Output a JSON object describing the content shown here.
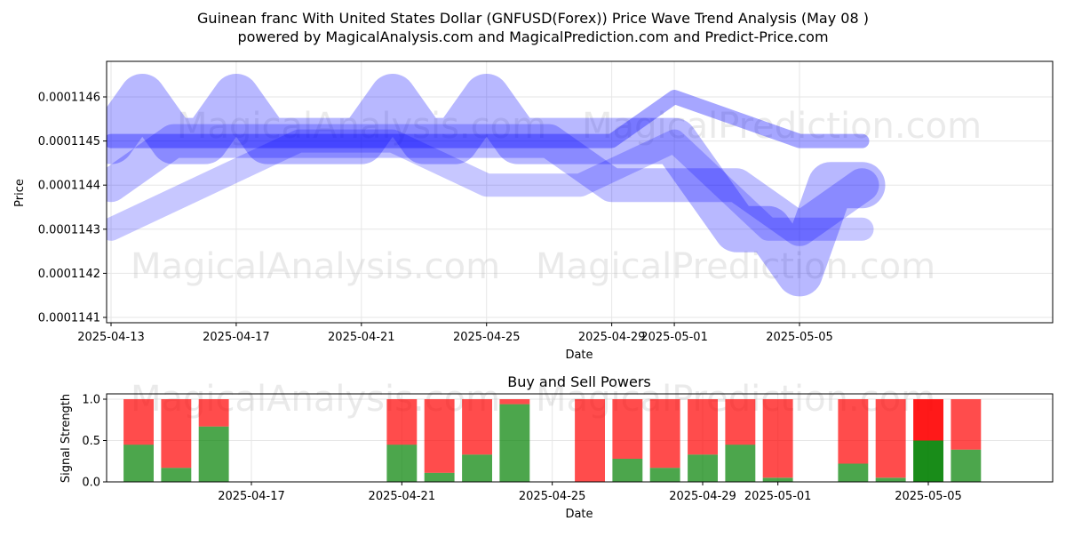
{
  "title_line1": "Guinean franc With United States Dollar (GNFUSD(Forex)) Price Wave Trend Analysis (May 08 )",
  "title_line2": "powered by MagicalAnalysis.com and MagicalPrediction.com and Predict-Price.com",
  "watermarks": [
    "MagicalAnalysis.com",
    "MagicalPrediction.com"
  ],
  "colors": {
    "wave": "#0000ff",
    "buy": "#008000",
    "sell": "#ff0000"
  },
  "chart_data": [
    {
      "type": "line",
      "title": "",
      "xlabel": "Date",
      "ylabel": "Price",
      "x_ticks": [
        "2025-04-13",
        "2025-04-17",
        "2025-04-21",
        "2025-04-25",
        "2025-04-29",
        "2025-05-01",
        "2025-05-05"
      ],
      "y_ticks": [
        "0.0001141",
        "0.0001142",
        "0.0001143",
        "0.0001144",
        "0.0001145",
        "0.0001146"
      ],
      "xlim": [
        "2025-04-13",
        "2025-05-07"
      ],
      "ylim": [
        0.00011409,
        0.00011468
      ],
      "grid": true,
      "series": [
        {
          "x": [
            "2025-04-13",
            "2025-04-14",
            "2025-04-15",
            "2025-04-16",
            "2025-04-17",
            "2025-04-18",
            "2025-04-19",
            "2025-04-20",
            "2025-04-21",
            "2025-04-22",
            "2025-04-23",
            "2025-04-24",
            "2025-04-25",
            "2025-04-26",
            "2025-04-27",
            "2025-04-28",
            "2025-04-29",
            "2025-04-30",
            "2025-05-01",
            "2025-05-02",
            "2025-05-03",
            "2025-05-04",
            "2025-05-05",
            "2025-05-06",
            "2025-05-07"
          ],
          "values": [
            0.0001145,
            0.0001146,
            0.0001145,
            0.0001145,
            0.0001146,
            0.0001145,
            0.0001145,
            0.0001145,
            0.0001145,
            0.0001146,
            0.0001145,
            0.0001145,
            0.0001146,
            0.0001145,
            0.0001145,
            0.0001145,
            0.0001145,
            0.0001145,
            0.0001145,
            0.0001144,
            0.0001143,
            0.0001143,
            0.0001142,
            0.0001144,
            0.0001144
          ]
        },
        {
          "x": [
            "2025-04-13",
            "2025-04-15",
            "2025-04-17",
            "2025-04-19",
            "2025-04-21",
            "2025-04-23",
            "2025-04-25",
            "2025-04-27",
            "2025-04-29",
            "2025-05-01",
            "2025-05-03",
            "2025-05-05",
            "2025-05-07"
          ],
          "values": [
            0.0001144,
            0.0001145,
            0.0001145,
            0.0001145,
            0.0001145,
            0.0001145,
            0.0001145,
            0.0001145,
            0.0001144,
            0.0001144,
            0.0001144,
            0.0001143,
            0.0001144
          ]
        },
        {
          "x": [
            "2025-04-13",
            "2025-04-16",
            "2025-04-19",
            "2025-04-22",
            "2025-04-25",
            "2025-04-28",
            "2025-05-01",
            "2025-05-04",
            "2025-05-07"
          ],
          "values": [
            0.0001143,
            0.0001144,
            0.0001145,
            0.0001145,
            0.0001144,
            0.0001144,
            0.0001145,
            0.0001143,
            0.0001143
          ]
        },
        {
          "x": [
            "2025-04-13",
            "2025-04-17",
            "2025-04-21",
            "2025-04-25",
            "2025-04-29",
            "2025-05-01",
            "2025-05-05",
            "2025-05-07"
          ],
          "values": [
            0.0001145,
            0.0001145,
            0.0001145,
            0.0001145,
            0.0001145,
            0.0001146,
            0.0001145,
            0.0001145
          ]
        }
      ]
    },
    {
      "type": "bar",
      "title": "Buy and Sell Powers",
      "xlabel": "Date",
      "ylabel": "Signal Strength",
      "x_ticks": [
        "2025-04-17",
        "2025-04-21",
        "2025-04-25",
        "2025-04-29",
        "2025-05-01",
        "2025-05-05"
      ],
      "y_ticks": [
        "0.0",
        "0.5",
        "1.0"
      ],
      "ylim": [
        0,
        1.05
      ],
      "categories": [
        "2025-04-14",
        "2025-04-15",
        "2025-04-16",
        "2025-04-21",
        "2025-04-22",
        "2025-04-23",
        "2025-04-24",
        "2025-04-26",
        "2025-04-27",
        "2025-04-28",
        "2025-04-29",
        "2025-04-30",
        "2025-05-01",
        "2025-05-03",
        "2025-05-04",
        "2025-05-05",
        "2025-05-06"
      ],
      "series": [
        {
          "name": "Buy",
          "values": [
            0.45,
            0.17,
            0.67,
            0.45,
            0.11,
            0.33,
            0.94,
            0.0,
            0.28,
            0.17,
            0.33,
            0.45,
            0.05,
            0.22,
            0.05,
            0.5,
            0.39
          ]
        },
        {
          "name": "Sell",
          "values": [
            0.55,
            0.83,
            0.33,
            0.55,
            0.89,
            0.67,
            0.06,
            1.0,
            0.72,
            0.83,
            0.67,
            0.55,
            0.95,
            0.78,
            0.95,
            0.5,
            0.61
          ]
        }
      ],
      "highlight_category": "2025-05-05"
    }
  ]
}
